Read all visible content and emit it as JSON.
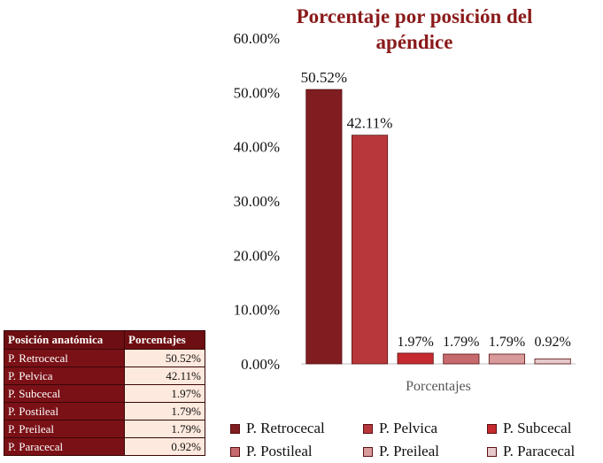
{
  "chart_data": {
    "type": "bar",
    "title": "Porcentaje por posición del apéndice",
    "xlabel": "Porcentajes",
    "ylabel": "",
    "ylim": [
      0,
      60
    ],
    "yticks": [
      "0.00%",
      "10.00%",
      "20.00%",
      "30.00%",
      "40.00%",
      "50.00%",
      "60.00%"
    ],
    "categories": [
      "P. Retrocecal",
      "P. Pelvica",
      "P. Subcecal",
      "P. Postileal",
      "P. Preileal",
      "P. Paracecal"
    ],
    "values": [
      50.52,
      42.11,
      1.97,
      1.79,
      1.79,
      0.92
    ],
    "data_labels": [
      "50.52%",
      "42.11%",
      "1.97%",
      "1.79%",
      "1.79%",
      "0.92%"
    ],
    "colors": [
      "#7f1d20",
      "#b8373a",
      "#c62a2e",
      "#c76a6d",
      "#d99a9c",
      "#e6c9cb"
    ],
    "legend_position": "bottom"
  },
  "table": {
    "headers": [
      "Posición anatómica",
      "Porcentajes"
    ],
    "rows": [
      [
        "P. Retrocecal",
        "50.52%"
      ],
      [
        "P. Pelvica",
        "42.11%"
      ],
      [
        "P. Subcecal",
        "1.97%"
      ],
      [
        "P. Postileal",
        "1.79%"
      ],
      [
        "P. Preileal",
        "1.79%"
      ],
      [
        "P. Paracecal",
        "0.92%"
      ]
    ]
  }
}
